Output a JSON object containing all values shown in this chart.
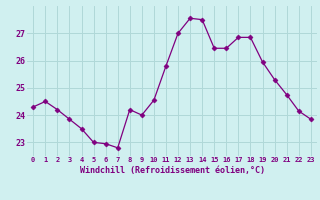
{
  "x": [
    0,
    1,
    2,
    3,
    4,
    5,
    6,
    7,
    8,
    9,
    10,
    11,
    12,
    13,
    14,
    15,
    16,
    17,
    18,
    19,
    20,
    21,
    22,
    23
  ],
  "y": [
    24.3,
    24.5,
    24.2,
    23.85,
    23.5,
    23.0,
    22.95,
    22.8,
    24.2,
    24.0,
    24.55,
    25.8,
    27.0,
    27.55,
    27.5,
    26.45,
    26.45,
    26.85,
    26.85,
    25.95,
    25.3,
    24.75,
    24.15,
    23.85
  ],
  "line_color": "#800080",
  "marker": "D",
  "marker_size": 2.5,
  "bg_color": "#d0f0f0",
  "grid_color": "#b0d8d8",
  "xlabel": "Windchill (Refroidissement éolien,°C)",
  "xlabel_color": "#800080",
  "tick_color": "#800080",
  "yticks": [
    23,
    24,
    25,
    26,
    27
  ],
  "xticks": [
    0,
    1,
    2,
    3,
    4,
    5,
    6,
    7,
    8,
    9,
    10,
    11,
    12,
    13,
    14,
    15,
    16,
    17,
    18,
    19,
    20,
    21,
    22,
    23
  ],
  "ylim": [
    22.5,
    28.0
  ],
  "xlim": [
    -0.5,
    23.5
  ]
}
